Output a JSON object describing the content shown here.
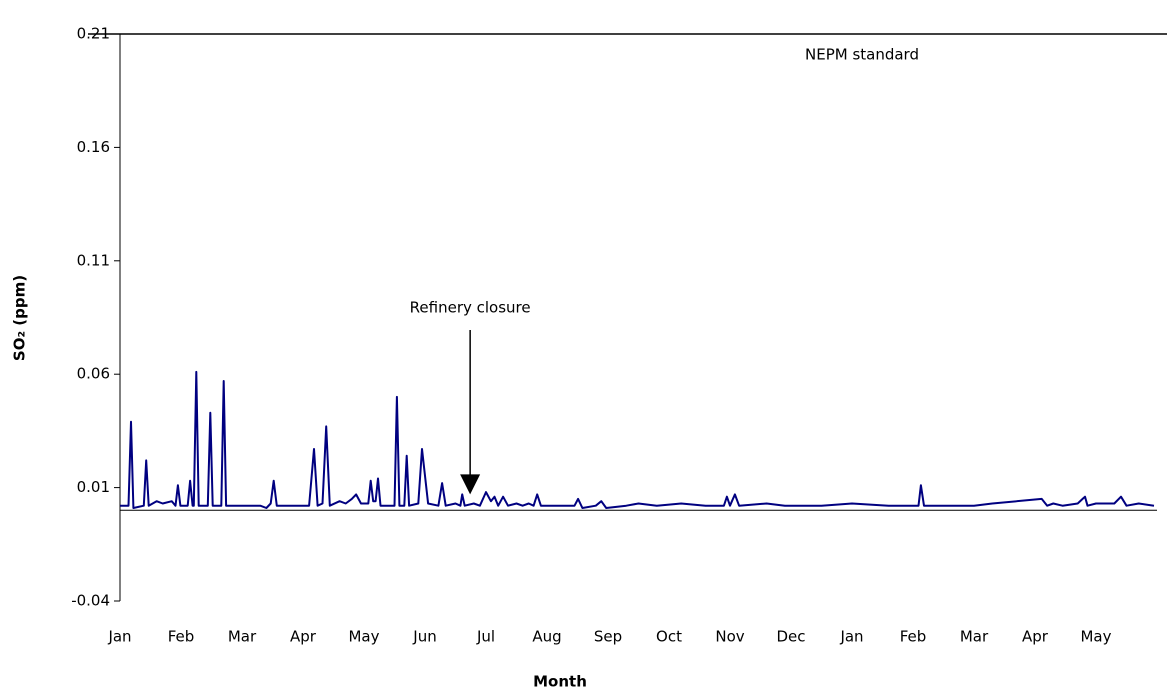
{
  "chart_data": {
    "type": "line",
    "xlabel": "Month",
    "ylabel": "SO₂ (ppm)",
    "xlim": [
      0,
      17
    ],
    "xticks": [
      {
        "value": 0,
        "label": "Jan"
      },
      {
        "value": 1,
        "label": "Feb"
      },
      {
        "value": 2,
        "label": "Mar"
      },
      {
        "value": 3,
        "label": "Apr"
      },
      {
        "value": 4,
        "label": "May"
      },
      {
        "value": 5,
        "label": "Jun"
      },
      {
        "value": 6,
        "label": "Jul"
      },
      {
        "value": 7,
        "label": "Aug"
      },
      {
        "value": 8,
        "label": "Sep"
      },
      {
        "value": 9,
        "label": "Oct"
      },
      {
        "value": 10,
        "label": "Nov"
      },
      {
        "value": 11,
        "label": "Dec"
      },
      {
        "value": 12,
        "label": "Jan"
      },
      {
        "value": 13,
        "label": "Feb"
      },
      {
        "value": 14,
        "label": "Mar"
      },
      {
        "value": 15,
        "label": "Apr"
      },
      {
        "value": 16,
        "label": "May"
      }
    ],
    "ylim": [
      -0.04,
      0.21
    ],
    "yticks": [
      -0.04,
      0.01,
      0.06,
      0.11,
      0.16,
      0.21
    ],
    "reference_line": {
      "value": 0.21,
      "label": "NEPM standard",
      "color": "#000000"
    },
    "annotation": {
      "text": "Refinery closure",
      "x": 5.74,
      "y": 0.007
    },
    "series": [
      {
        "color": "#000080",
        "x": [
          0,
          0.14,
          0.18,
          0.22,
          0.39,
          0.43,
          0.47,
          0.6,
          0.7,
          0.85,
          0.91,
          0.95,
          0.99,
          1.11,
          1.15,
          1.19,
          1.21,
          1.25,
          1.29,
          1.44,
          1.48,
          1.52,
          1.66,
          1.7,
          1.74,
          2.3,
          2.4,
          2.47,
          2.52,
          2.57,
          3.1,
          3.18,
          3.24,
          3.32,
          3.38,
          3.44,
          3.6,
          3.7,
          3.8,
          3.87,
          3.95,
          4.07,
          4.11,
          4.15,
          4.19,
          4.23,
          4.27,
          4.5,
          4.54,
          4.58,
          4.66,
          4.7,
          4.74,
          4.89,
          4.95,
          5.05,
          5.22,
          5.28,
          5.34,
          5.5,
          5.58,
          5.61,
          5.65,
          5.8,
          5.9,
          6.0,
          6.08,
          6.14,
          6.2,
          6.28,
          6.36,
          6.5,
          6.6,
          6.7,
          6.78,
          6.84,
          6.9,
          7.2,
          7.45,
          7.51,
          7.58,
          7.8,
          7.89,
          7.97,
          8.3,
          8.5,
          8.8,
          9.2,
          9.6,
          9.9,
          9.95,
          10.0,
          10.08,
          10.15,
          10.6,
          10.9,
          11.5,
          12.0,
          12.6,
          13.09,
          13.13,
          13.18,
          13.6,
          14.0,
          14.3,
          15.11,
          15.2,
          15.3,
          15.45,
          15.7,
          15.78,
          15.82,
          15.86,
          16.0,
          16.3,
          16.41,
          16.5,
          16.7,
          16.95
        ],
        "values": [
          0.002,
          0.002,
          0.039,
          0.001,
          0.002,
          0.022,
          0.002,
          0.004,
          0.003,
          0.004,
          0.002,
          0.011,
          0.002,
          0.002,
          0.013,
          0.002,
          0.002,
          0.061,
          0.002,
          0.002,
          0.043,
          0.002,
          0.002,
          0.057,
          0.002,
          0.002,
          0.001,
          0.003,
          0.013,
          0.002,
          0.002,
          0.027,
          0.002,
          0.003,
          0.037,
          0.002,
          0.004,
          0.003,
          0.005,
          0.007,
          0.003,
          0.003,
          0.013,
          0.004,
          0.004,
          0.014,
          0.002,
          0.002,
          0.05,
          0.002,
          0.002,
          0.024,
          0.002,
          0.003,
          0.027,
          0.003,
          0.002,
          0.012,
          0.002,
          0.003,
          0.002,
          0.007,
          0.002,
          0.003,
          0.002,
          0.008,
          0.004,
          0.006,
          0.002,
          0.006,
          0.002,
          0.003,
          0.002,
          0.003,
          0.002,
          0.007,
          0.002,
          0.002,
          0.002,
          0.005,
          0.001,
          0.002,
          0.004,
          0.001,
          0.002,
          0.003,
          0.002,
          0.003,
          0.002,
          0.002,
          0.006,
          0.002,
          0.007,
          0.002,
          0.003,
          0.002,
          0.002,
          0.003,
          0.002,
          0.002,
          0.011,
          0.002,
          0.002,
          0.002,
          0.003,
          0.005,
          0.002,
          0.003,
          0.002,
          0.003,
          0.005,
          0.006,
          0.002,
          0.003,
          0.003,
          0.006,
          0.002,
          0.003,
          0.002
        ]
      }
    ]
  }
}
